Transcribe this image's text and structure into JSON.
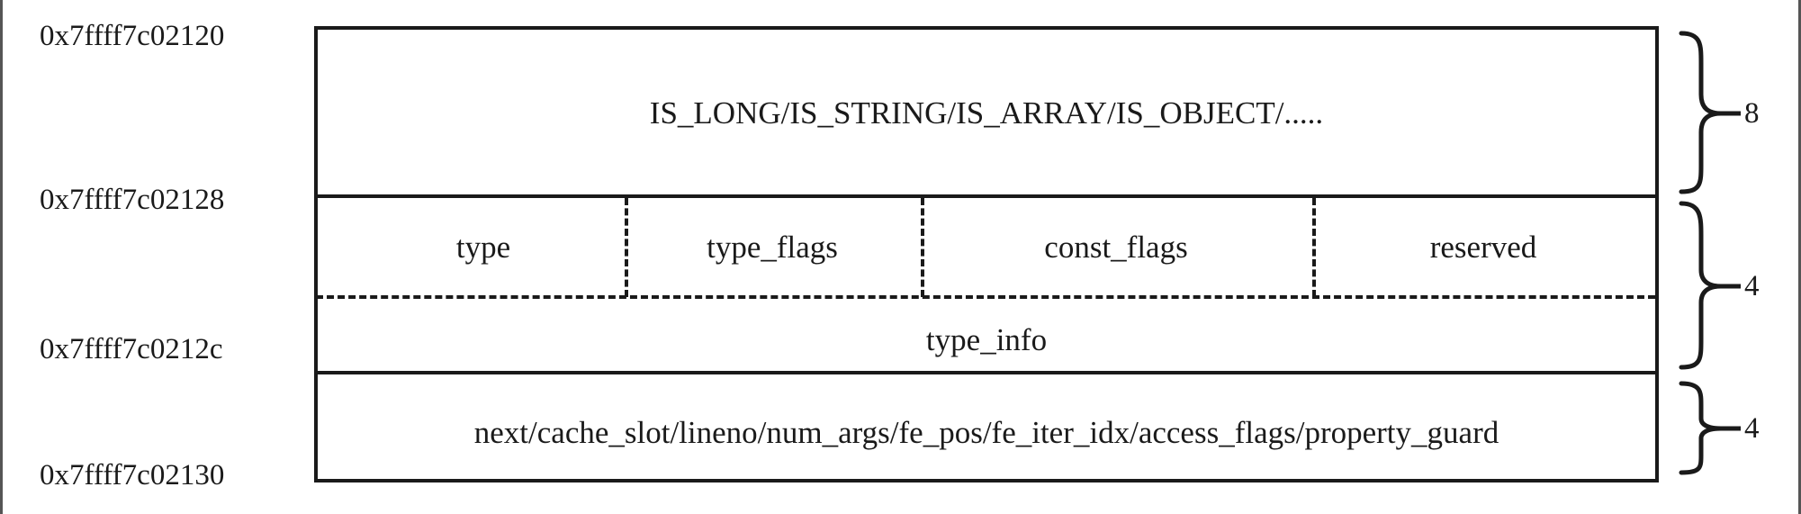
{
  "addresses": {
    "a0": "0x7ffff7c02120",
    "a1": "0x7ffff7c02128",
    "a2": "0x7ffff7c0212c",
    "a3": "0x7ffff7c02130"
  },
  "blocks": {
    "value_union": "IS_LONG/IS_STRING/IS_ARRAY/IS_OBJECT/.....",
    "type_fields": [
      "type",
      "type_flags",
      "const_flags",
      "reserved"
    ],
    "type_info": "type_info",
    "u2_union": "next/cache_slot/lineno/num_args/fe_pos/fe_iter_idx/access_flags/property_guard"
  },
  "sizes": {
    "value": "8",
    "type": "4",
    "u2": "4"
  }
}
